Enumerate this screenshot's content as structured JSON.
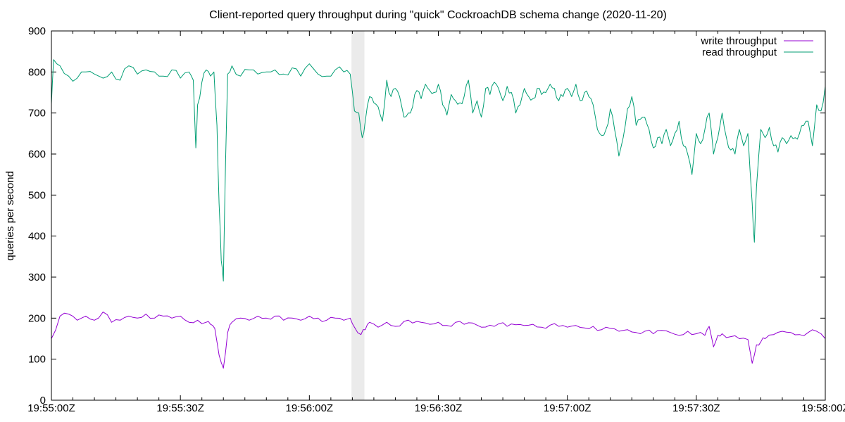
{
  "chart_data": {
    "type": "line",
    "title": "Client-reported query throughput during \"quick\" CockroachDB schema change (2020-11-20)",
    "xlabel": "",
    "ylabel": "queries per second",
    "xlim_seconds": [
      0,
      180
    ],
    "ylim": [
      0,
      900
    ],
    "x_ticks": [
      {
        "value": 0,
        "label": "19:55:00Z"
      },
      {
        "value": 30,
        "label": "19:55:30Z"
      },
      {
        "value": 60,
        "label": "19:56:00Z"
      },
      {
        "value": 90,
        "label": "19:56:30Z"
      },
      {
        "value": 120,
        "label": "19:57:00Z"
      },
      {
        "value": 150,
        "label": "19:57:30Z"
      },
      {
        "value": 180,
        "label": "19:58:00Z"
      }
    ],
    "y_ticks": [
      0,
      100,
      200,
      300,
      400,
      500,
      600,
      700,
      800,
      900
    ],
    "legend_position": "top-right",
    "highlight_region": [
      69.8,
      72.8
    ],
    "highlight_color": "#ebebeb",
    "series": [
      {
        "name": "write throughput",
        "color": "#9400d3",
        "keypoints": [
          [
            0,
            150
          ],
          [
            2,
            205
          ],
          [
            4,
            210
          ],
          [
            6,
            195
          ],
          [
            8,
            205
          ],
          [
            10,
            195
          ],
          [
            12,
            215
          ],
          [
            14,
            190
          ],
          [
            16,
            195
          ],
          [
            18,
            205
          ],
          [
            20,
            200
          ],
          [
            22,
            210
          ],
          [
            24,
            200
          ],
          [
            26,
            205
          ],
          [
            28,
            200
          ],
          [
            30,
            205
          ],
          [
            32,
            190
          ],
          [
            34,
            195
          ],
          [
            36,
            190
          ],
          [
            37,
            185
          ],
          [
            38,
            175
          ],
          [
            39,
            110
          ],
          [
            40,
            78
          ],
          [
            41,
            165
          ],
          [
            42,
            190
          ],
          [
            44,
            200
          ],
          [
            46,
            195
          ],
          [
            48,
            205
          ],
          [
            50,
            200
          ],
          [
            52,
            205
          ],
          [
            54,
            195
          ],
          [
            56,
            200
          ],
          [
            58,
            195
          ],
          [
            60,
            205
          ],
          [
            62,
            200
          ],
          [
            64,
            195
          ],
          [
            66,
            200
          ],
          [
            68,
            195
          ],
          [
            69.5,
            200
          ],
          [
            70.5,
            178
          ],
          [
            72,
            160
          ],
          [
            73,
            172
          ],
          [
            74,
            190
          ],
          [
            76,
            178
          ],
          [
            78,
            190
          ],
          [
            80,
            180
          ],
          [
            82,
            192
          ],
          [
            84,
            188
          ],
          [
            86,
            190
          ],
          [
            88,
            185
          ],
          [
            90,
            190
          ],
          [
            92,
            182
          ],
          [
            94,
            190
          ],
          [
            96,
            185
          ],
          [
            98,
            188
          ],
          [
            100,
            178
          ],
          [
            102,
            183
          ],
          [
            104,
            186
          ],
          [
            106,
            180
          ],
          [
            108,
            184
          ],
          [
            110,
            182
          ],
          [
            112,
            185
          ],
          [
            114,
            178
          ],
          [
            116,
            183
          ],
          [
            118,
            180
          ],
          [
            120,
            178
          ],
          [
            122,
            182
          ],
          [
            124,
            176
          ],
          [
            126,
            180
          ],
          [
            128,
            172
          ],
          [
            130,
            175
          ],
          [
            132,
            168
          ],
          [
            134,
            172
          ],
          [
            136,
            165
          ],
          [
            138,
            168
          ],
          [
            140,
            162
          ],
          [
            142,
            170
          ],
          [
            144,
            165
          ],
          [
            146,
            158
          ],
          [
            148,
            168
          ],
          [
            150,
            162
          ],
          [
            152,
            158
          ],
          [
            153,
            180
          ],
          [
            154,
            130
          ],
          [
            155,
            158
          ],
          [
            156,
            162
          ],
          [
            158,
            155
          ],
          [
            160,
            150
          ],
          [
            162,
            148
          ],
          [
            163,
            90
          ],
          [
            164,
            135
          ],
          [
            165,
            142
          ],
          [
            166,
            150
          ],
          [
            168,
            160
          ],
          [
            170,
            168
          ],
          [
            172,
            165
          ],
          [
            174,
            160
          ],
          [
            176,
            165
          ],
          [
            178,
            168
          ],
          [
            180,
            150
          ]
        ]
      },
      {
        "name": "read throughput",
        "color": "#009e73",
        "keypoints": [
          [
            0,
            722
          ],
          [
            0.5,
            830
          ],
          [
            2,
            815
          ],
          [
            4,
            790
          ],
          [
            6,
            785
          ],
          [
            8,
            800
          ],
          [
            10,
            795
          ],
          [
            12,
            785
          ],
          [
            14,
            800
          ],
          [
            16,
            780
          ],
          [
            18,
            815
          ],
          [
            20,
            795
          ],
          [
            22,
            805
          ],
          [
            24,
            800
          ],
          [
            26,
            790
          ],
          [
            28,
            805
          ],
          [
            30,
            785
          ],
          [
            32,
            800
          ],
          [
            33,
            780
          ],
          [
            33.6,
            615
          ],
          [
            34,
            720
          ],
          [
            35,
            775
          ],
          [
            36,
            805
          ],
          [
            37,
            790
          ],
          [
            37.8,
            800
          ],
          [
            38.5,
            670
          ],
          [
            39,
            480
          ],
          [
            39.5,
            340
          ],
          [
            40,
            290
          ],
          [
            40.5,
            580
          ],
          [
            41,
            795
          ],
          [
            42,
            815
          ],
          [
            44,
            790
          ],
          [
            46,
            805
          ],
          [
            48,
            795
          ],
          [
            50,
            800
          ],
          [
            52,
            805
          ],
          [
            54,
            795
          ],
          [
            56,
            810
          ],
          [
            58,
            790
          ],
          [
            60,
            820
          ],
          [
            62,
            795
          ],
          [
            64,
            790
          ],
          [
            66,
            805
          ],
          [
            68,
            800
          ],
          [
            69.5,
            795
          ],
          [
            70.5,
            705
          ],
          [
            71.5,
            700
          ],
          [
            72.3,
            640
          ],
          [
            73,
            680
          ],
          [
            74,
            740
          ],
          [
            75,
            725
          ],
          [
            76,
            715
          ],
          [
            77,
            680
          ],
          [
            78,
            780
          ],
          [
            79,
            740
          ],
          [
            80,
            760
          ],
          [
            81,
            740
          ],
          [
            82,
            690
          ],
          [
            83,
            700
          ],
          [
            84,
            715
          ],
          [
            85,
            755
          ],
          [
            86,
            735
          ],
          [
            87,
            770
          ],
          [
            88,
            755
          ],
          [
            89,
            750
          ],
          [
            90,
            770
          ],
          [
            91,
            720
          ],
          [
            92,
            695
          ],
          [
            93,
            745
          ],
          [
            94,
            730
          ],
          [
            95,
            725
          ],
          [
            96,
            740
          ],
          [
            97,
            780
          ],
          [
            98,
            700
          ],
          [
            99,
            730
          ],
          [
            100,
            690
          ],
          [
            101,
            760
          ],
          [
            102,
            745
          ],
          [
            103,
            775
          ],
          [
            104,
            760
          ],
          [
            105,
            730
          ],
          [
            106,
            765
          ],
          [
            107,
            750
          ],
          [
            108,
            700
          ],
          [
            109,
            720
          ],
          [
            110,
            760
          ],
          [
            111,
            740
          ],
          [
            112,
            735
          ],
          [
            113,
            760
          ],
          [
            114,
            745
          ],
          [
            115,
            750
          ],
          [
            116,
            770
          ],
          [
            117,
            760
          ],
          [
            118,
            730
          ],
          [
            119,
            740
          ],
          [
            120,
            760
          ],
          [
            121,
            740
          ],
          [
            122,
            770
          ],
          [
            123,
            730
          ],
          [
            124,
            750
          ],
          [
            125,
            740
          ],
          [
            126,
            720
          ],
          [
            127,
            660
          ],
          [
            128,
            645
          ],
          [
            129,
            660
          ],
          [
            130,
            710
          ],
          [
            131,
            660
          ],
          [
            132,
            595
          ],
          [
            133,
            640
          ],
          [
            134,
            710
          ],
          [
            135,
            740
          ],
          [
            136,
            670
          ],
          [
            137,
            685
          ],
          [
            138,
            690
          ],
          [
            139,
            660
          ],
          [
            140,
            615
          ],
          [
            141,
            640
          ],
          [
            142,
            625
          ],
          [
            143,
            660
          ],
          [
            144,
            620
          ],
          [
            145,
            650
          ],
          [
            146,
            680
          ],
          [
            147,
            620
          ],
          [
            148,
            600
          ],
          [
            149,
            550
          ],
          [
            150,
            650
          ],
          [
            151,
            625
          ],
          [
            152,
            660
          ],
          [
            153,
            700
          ],
          [
            154,
            600
          ],
          [
            155,
            640
          ],
          [
            156,
            700
          ],
          [
            157,
            640
          ],
          [
            158,
            610
          ],
          [
            159,
            600
          ],
          [
            160,
            660
          ],
          [
            161,
            620
          ],
          [
            162,
            650
          ],
          [
            163,
            480
          ],
          [
            163.5,
            385
          ],
          [
            164,
            520
          ],
          [
            165,
            660
          ],
          [
            166,
            640
          ],
          [
            167,
            665
          ],
          [
            168,
            620
          ],
          [
            169,
            605
          ],
          [
            170,
            640
          ],
          [
            171,
            625
          ],
          [
            172,
            645
          ],
          [
            173,
            640
          ],
          [
            174,
            650
          ],
          [
            175,
            670
          ],
          [
            176,
            680
          ],
          [
            177,
            620
          ],
          [
            178,
            720
          ],
          [
            179,
            705
          ],
          [
            180,
            765
          ]
        ]
      }
    ]
  }
}
